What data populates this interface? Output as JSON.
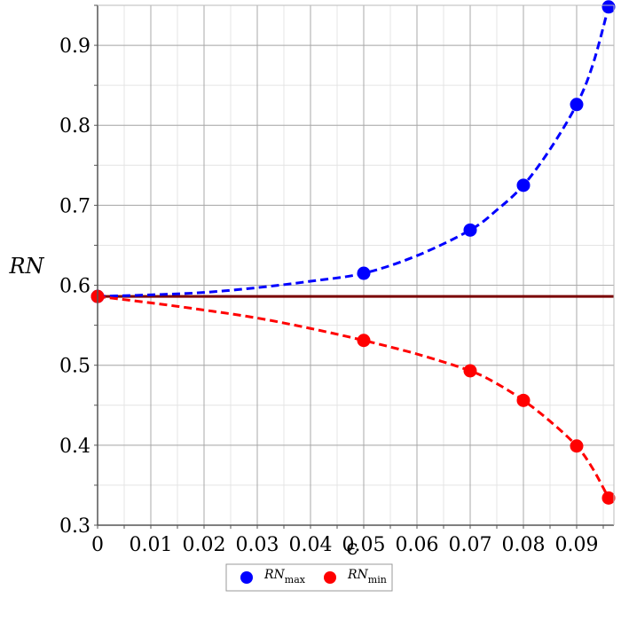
{
  "chart_data": {
    "type": "line",
    "xlabel": "ϵ",
    "ylabel": "RN",
    "xlim": [
      0,
      0.097
    ],
    "ylim": [
      0.3,
      0.95
    ],
    "x_ticks": [
      0,
      0.01,
      0.02,
      0.03,
      0.04,
      0.05,
      0.06,
      0.07,
      0.08,
      0.09
    ],
    "x_tick_labels": [
      "0",
      "0.01",
      "0.02",
      "0.03",
      "0.04",
      "0.05",
      "0.06",
      "0.07",
      "0.08",
      "0.09"
    ],
    "y_ticks": [
      0.3,
      0.4,
      0.5,
      0.6,
      0.7,
      0.8,
      0.9
    ],
    "y_tick_labels": [
      "0.3",
      "0.4",
      "0.5",
      "0.6",
      "0.7",
      "0.8",
      "0.9"
    ],
    "grid": true,
    "legend_position": "bottom-center",
    "reference_line": {
      "y": 0.586,
      "color": "#7a0000"
    },
    "series": [
      {
        "name": "RN",
        "subscript": "max",
        "color": "#0000ff",
        "points": [
          [
            0,
            0.586
          ],
          [
            0.05,
            0.615
          ],
          [
            0.07,
            0.669
          ],
          [
            0.08,
            0.725
          ],
          [
            0.09,
            0.826
          ],
          [
            0.096,
            0.948
          ]
        ],
        "curve": [
          [
            0,
            0.586
          ],
          [
            0.01,
            0.588
          ],
          [
            0.02,
            0.591
          ],
          [
            0.03,
            0.597
          ],
          [
            0.04,
            0.605
          ],
          [
            0.05,
            0.615
          ],
          [
            0.06,
            0.637
          ],
          [
            0.07,
            0.669
          ],
          [
            0.075,
            0.694
          ],
          [
            0.08,
            0.725
          ],
          [
            0.085,
            0.77
          ],
          [
            0.09,
            0.826
          ],
          [
            0.093,
            0.875
          ],
          [
            0.096,
            0.948
          ]
        ]
      },
      {
        "name": "RN",
        "subscript": "min",
        "color": "#ff0000",
        "points": [
          [
            0,
            0.586
          ],
          [
            0.05,
            0.531
          ],
          [
            0.07,
            0.493
          ],
          [
            0.08,
            0.456
          ],
          [
            0.09,
            0.399
          ],
          [
            0.096,
            0.334
          ]
        ],
        "curve": [
          [
            0,
            0.586
          ],
          [
            0.01,
            0.578
          ],
          [
            0.02,
            0.569
          ],
          [
            0.03,
            0.559
          ],
          [
            0.04,
            0.546
          ],
          [
            0.05,
            0.531
          ],
          [
            0.06,
            0.514
          ],
          [
            0.07,
            0.493
          ],
          [
            0.075,
            0.477
          ],
          [
            0.08,
            0.456
          ],
          [
            0.085,
            0.43
          ],
          [
            0.09,
            0.399
          ],
          [
            0.093,
            0.371
          ],
          [
            0.096,
            0.334
          ]
        ]
      }
    ]
  }
}
